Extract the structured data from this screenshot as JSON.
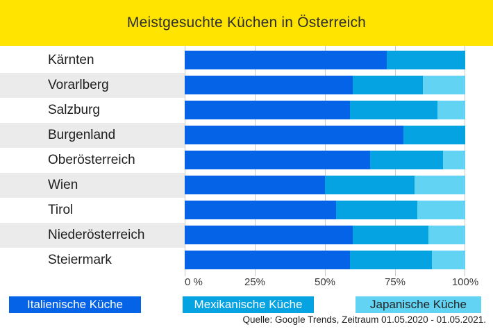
{
  "title": "Meistgesuchte Küchen in Österreich",
  "source": "Quelle: Google Trends, Zeitraum 01.05.2020 - 01.05.2021.",
  "colors": {
    "title_band": "#FFE400",
    "row_stripe": "#EBEBEB",
    "gridline": "#C9C9C9",
    "italian": "#0563E8",
    "mexican": "#06A3E2",
    "japanese": "#62D3F3"
  },
  "legend": [
    {
      "label": "Italienische Küche",
      "color": "#0563E8",
      "text_color": "#FFFFFF"
    },
    {
      "label": "Mexikanische Küche",
      "color": "#06A3E2",
      "text_color": "#FFFFFF"
    },
    {
      "label": "Japanische Küche",
      "color": "#62D3F3",
      "text_color": "#222222"
    }
  ],
  "chart_data": {
    "type": "bar",
    "orientation": "horizontal",
    "stacked": true,
    "title": "Meistgesuchte Küchen in Österreich",
    "categories": [
      "Kärnten",
      "Vorarlberg",
      "Salzburg",
      "Burgenland",
      "Oberösterreich",
      "Wien",
      "Tirol",
      "Niederösterreich",
      "Steiermark"
    ],
    "series": [
      {
        "name": "Italienische Küche",
        "key": "italian",
        "color": "#0563E8",
        "values": [
          72,
          60,
          59,
          78,
          66,
          50,
          54,
          60,
          59
        ]
      },
      {
        "name": "Mexikanische Küche",
        "key": "mexican",
        "color": "#06A3E2",
        "values": [
          28,
          25,
          31,
          22,
          26,
          32,
          29,
          27,
          29
        ]
      },
      {
        "name": "Japanische Küche",
        "key": "japanese",
        "color": "#62D3F3",
        "values": [
          0,
          15,
          10,
          0,
          8,
          18,
          17,
          13,
          12
        ]
      }
    ],
    "x_ticks": [
      "0 %",
      "25%",
      "50%",
      "75%",
      "100%"
    ],
    "tick_positions": [
      0,
      25,
      50,
      75,
      100
    ],
    "xlim": [
      0,
      100
    ],
    "unit": "%",
    "grid": true,
    "legend_position": "bottom"
  }
}
